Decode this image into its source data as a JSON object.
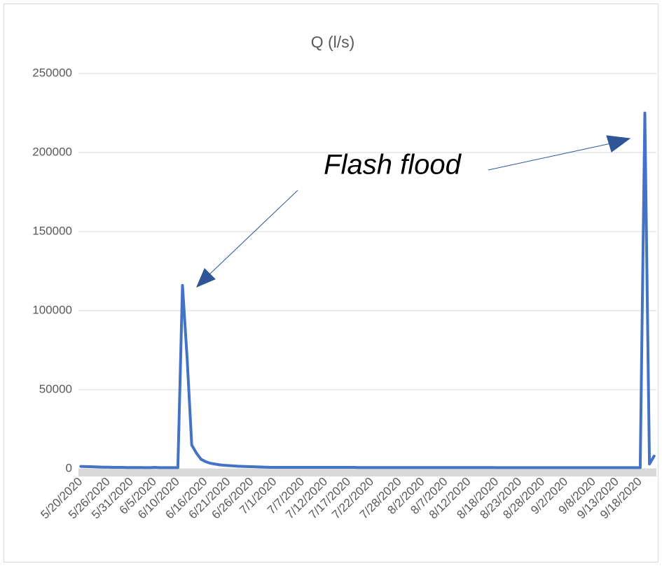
{
  "chart_data": {
    "type": "line",
    "title": "Q (l/s)",
    "annotation": "Flash flood",
    "categories": [
      "5/20/2020",
      null,
      null,
      null,
      null,
      null,
      "5/26/2020",
      null,
      null,
      null,
      null,
      "5/31/2020",
      null,
      null,
      null,
      null,
      "6/5/2020",
      null,
      null,
      null,
      null,
      "6/10/2020",
      null,
      null,
      null,
      null,
      null,
      "6/16/2020",
      null,
      null,
      null,
      null,
      "6/21/2020",
      null,
      null,
      null,
      null,
      "6/26/2020",
      null,
      null,
      null,
      null,
      "7/1/2020",
      null,
      null,
      null,
      null,
      null,
      "7/7/2020",
      null,
      null,
      null,
      null,
      "7/12/2020",
      null,
      null,
      null,
      null,
      "7/17/2020",
      null,
      null,
      null,
      null,
      "7/22/2020",
      null,
      null,
      null,
      null,
      null,
      "7/28/2020",
      null,
      null,
      null,
      null,
      "8/2/2020",
      null,
      null,
      null,
      null,
      "8/7/2020",
      null,
      null,
      null,
      null,
      "8/12/2020",
      null,
      null,
      null,
      null,
      null,
      "8/18/2020",
      null,
      null,
      null,
      null,
      "8/23/2020",
      null,
      null,
      null,
      null,
      "8/28/2020",
      null,
      null,
      null,
      null,
      "9/2/2020",
      null,
      null,
      null,
      null,
      null,
      "9/8/2020",
      null,
      null,
      null,
      null,
      "9/13/2020",
      null,
      null,
      null,
      null,
      "9/18/2020",
      null,
      null,
      null
    ],
    "values": [
      1500,
      1400,
      1300,
      1200,
      1100,
      1000,
      1000,
      900,
      900,
      900,
      800,
      800,
      800,
      800,
      700,
      700,
      900,
      700,
      700,
      700,
      700,
      700,
      116000,
      70000,
      15000,
      10000,
      6000,
      4500,
      3500,
      3000,
      2500,
      2200,
      2000,
      1800,
      1600,
      1500,
      1400,
      1300,
      1200,
      1100,
      1000,
      900,
      900,
      900,
      900,
      900,
      900,
      900,
      900,
      900,
      900,
      900,
      900,
      900,
      900,
      900,
      900,
      900,
      900,
      900,
      800,
      800,
      800,
      800,
      800,
      800,
      800,
      800,
      800,
      800,
      800,
      800,
      800,
      800,
      800,
      800,
      800,
      800,
      800,
      800,
      800,
      800,
      800,
      800,
      800,
      800,
      800,
      800,
      800,
      800,
      700,
      700,
      700,
      700,
      700,
      700,
      700,
      700,
      700,
      700,
      700,
      700,
      700,
      700,
      700,
      700,
      700,
      700,
      700,
      700,
      700,
      700,
      700,
      700,
      700,
      700,
      700,
      700,
      700,
      700,
      700,
      700,
      225000,
      3000,
      8000
    ],
    "color": "#4472c4",
    "ylim": [
      0,
      250000
    ],
    "yticks": [
      0,
      50000,
      100000,
      150000,
      200000,
      250000
    ],
    "grid": true
  }
}
